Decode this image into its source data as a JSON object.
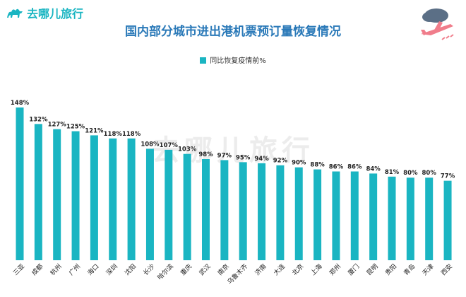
{
  "brand": {
    "name": "去哪儿旅行",
    "watermark": "去哪儿旅行"
  },
  "colors": {
    "bar": "#1ab5c2",
    "title": "#2a79b8"
  },
  "chart_data": {
    "type": "bar",
    "title": "国内部分城市进出港机票预订量恢复情况",
    "legend": {
      "position": "top",
      "entries": [
        "同比恢复疫情前%"
      ]
    },
    "categories": [
      "三亚",
      "成都",
      "杭州",
      "广州",
      "海口",
      "深圳",
      "沈阳",
      "长沙",
      "哈尔滨",
      "重庆",
      "武汉",
      "南京",
      "乌鲁木齐",
      "济南",
      "大连",
      "北京",
      "上海",
      "郑州",
      "厦门",
      "昆明",
      "贵阳",
      "青岛",
      "天津",
      "西安"
    ],
    "series": [
      {
        "name": "同比恢复疫情前%",
        "values": [
          148,
          132,
          127,
          125,
          121,
          118,
          118,
          108,
          107,
          103,
          98,
          97,
          95,
          94,
          92,
          90,
          88,
          86,
          86,
          84,
          81,
          80,
          80,
          77
        ]
      }
    ],
    "value_labels": [
      "148%",
      "132%",
      "127%",
      "125%",
      "121%",
      "118%",
      "118%",
      "108%",
      "107%",
      "103%",
      "98%",
      "97%",
      "95%",
      "94%",
      "92%",
      "90%",
      "88%",
      "86%",
      "86%",
      "84%",
      "81%",
      "80%",
      "80%",
      "77%"
    ],
    "ylim": [
      0,
      150
    ],
    "grid": false
  }
}
